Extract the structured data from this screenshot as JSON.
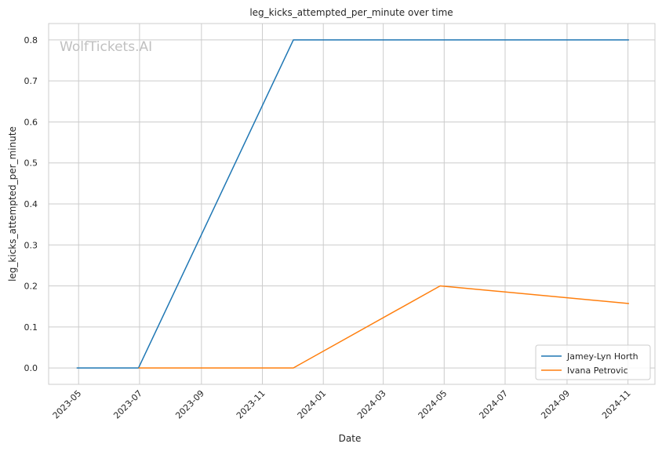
{
  "chart_data": {
    "type": "line",
    "title": "leg_kicks_attempted_per_minute over time",
    "xlabel": "Date",
    "ylabel": "leg_kicks_attempted_per_minute",
    "watermark": "WolfTickets.AI",
    "x_ticks": [
      "2023-05",
      "2023-07",
      "2023-09",
      "2023-11",
      "2024-01",
      "2024-03",
      "2024-05",
      "2024-07",
      "2024-09",
      "2024-11"
    ],
    "y_ticks": [
      "0.0",
      "0.1",
      "0.2",
      "0.3",
      "0.4",
      "0.5",
      "0.6",
      "0.7",
      "0.8"
    ],
    "xlim": [
      "2023-04-01",
      "2024-11-28"
    ],
    "ylim": [
      -0.04,
      0.84
    ],
    "grid": true,
    "legend_position": "bottom-right",
    "series": [
      {
        "name": "Jamey-Lyn Horth",
        "color": "#1f77b4",
        "points": [
          {
            "x": "2023-04-29",
            "y": 0.0
          },
          {
            "x": "2023-06-30",
            "y": 0.0
          },
          {
            "x": "2023-12-02",
            "y": 0.8
          },
          {
            "x": "2024-11-02",
            "y": 0.8
          }
        ]
      },
      {
        "name": "Ivana Petrovic",
        "color": "#ff7f0e",
        "points": [
          {
            "x": "2023-06-30",
            "y": 0.0
          },
          {
            "x": "2023-12-02",
            "y": 0.0
          },
          {
            "x": "2024-04-27",
            "y": 0.2
          },
          {
            "x": "2024-11-02",
            "y": 0.157
          }
        ]
      }
    ]
  }
}
